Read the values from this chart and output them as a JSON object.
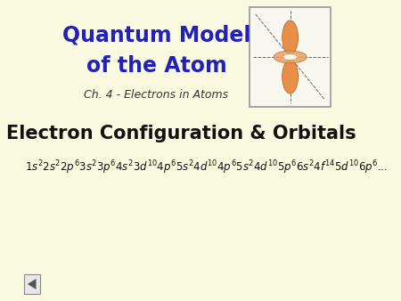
{
  "bg_color": "#FAFAE0",
  "title_line1": "Quantum Model",
  "title_line2": "of the Atom",
  "title_color": "#2222BB",
  "subtitle": "Ch. 4 - Electrons in Atoms",
  "subtitle_color": "#333333",
  "main_title": "Electron Configuration & Orbitals",
  "main_title_color": "#111111",
  "config_color": "#111111",
  "box_linecolor": "#999999",
  "orbital_lobe_color": "#E8904A",
  "orbital_lobe_edge": "#C07030",
  "orbital_ring_color": "#E8A060",
  "axes_color": "#666666",
  "nav_color": "#555555",
  "title_fontsize": 17,
  "subtitle_fontsize": 9,
  "main_fontsize": 15,
  "config_fontsize": 8.5
}
